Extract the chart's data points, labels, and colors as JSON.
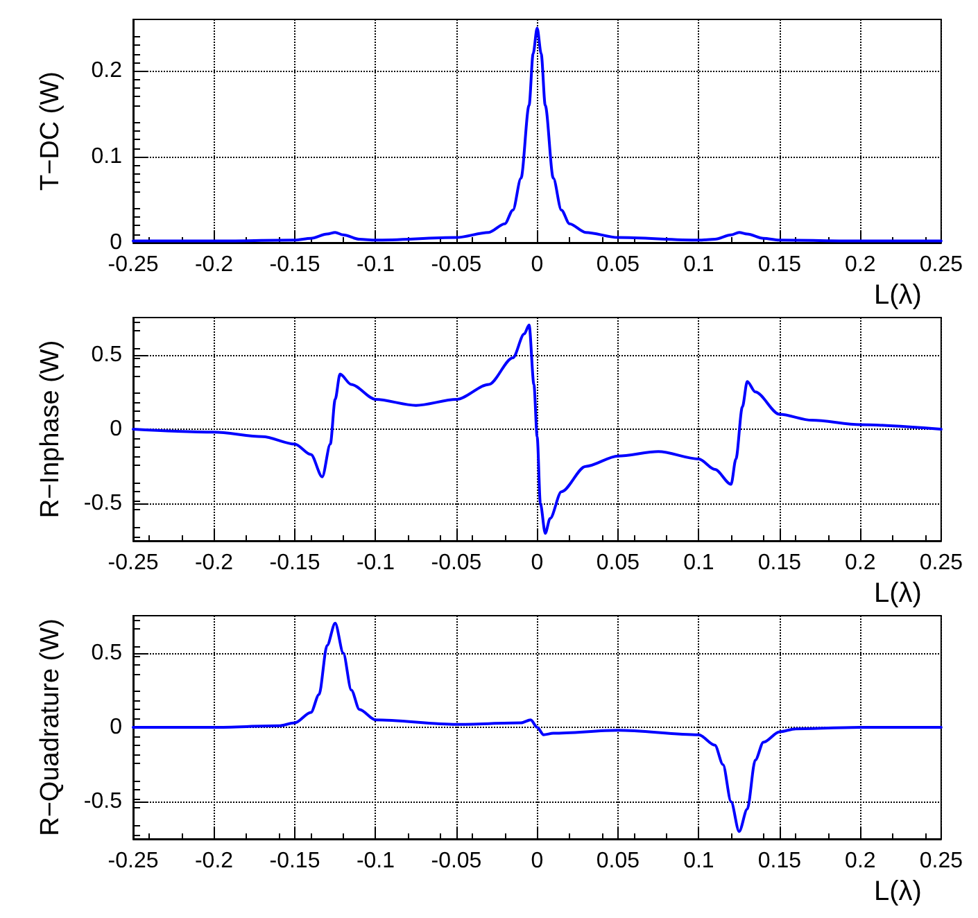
{
  "chart_data": [
    {
      "type": "line",
      "xlabel": "L(λ)",
      "ylabel": "T−DC (W)",
      "xlim": [
        -0.25,
        0.25
      ],
      "xticks": [
        -0.25,
        -0.2,
        -0.15,
        -0.1,
        -0.05,
        0,
        0.05,
        0.1,
        0.15,
        0.2,
        0.25
      ],
      "ylim": [
        0,
        0.26
      ],
      "yticks": [
        0,
        0.1,
        0.2
      ],
      "grid": true,
      "marker": "none",
      "line_style": "solid",
      "series": [
        {
          "color": "#0000ff",
          "x": [
            -0.25,
            -0.2,
            -0.15,
            -0.14,
            -0.13,
            -0.125,
            -0.12,
            -0.11,
            -0.1,
            -0.05,
            -0.03,
            -0.02,
            -0.015,
            -0.01,
            -0.005,
            -0.0025,
            0,
            0.0025,
            0.005,
            0.01,
            0.015,
            0.02,
            0.03,
            0.05,
            0.1,
            0.11,
            0.12,
            0.125,
            0.13,
            0.14,
            0.15,
            0.2,
            0.25
          ],
          "values": [
            0.002,
            0.002,
            0.003,
            0.005,
            0.01,
            0.012,
            0.009,
            0.004,
            0.003,
            0.006,
            0.012,
            0.022,
            0.038,
            0.075,
            0.16,
            0.22,
            0.25,
            0.22,
            0.16,
            0.075,
            0.038,
            0.022,
            0.012,
            0.006,
            0.003,
            0.004,
            0.009,
            0.012,
            0.01,
            0.005,
            0.003,
            0.002,
            0.002
          ]
        }
      ]
    },
    {
      "type": "line",
      "xlabel": "L(λ)",
      "ylabel": "R−Inphase (W)",
      "xlim": [
        -0.25,
        0.25
      ],
      "xticks": [
        -0.25,
        -0.2,
        -0.15,
        -0.1,
        -0.05,
        0,
        0.05,
        0.1,
        0.15,
        0.2,
        0.25
      ],
      "ylim": [
        -0.75,
        0.75
      ],
      "yticks": [
        -0.5,
        0,
        0.5
      ],
      "grid": true,
      "marker": "none",
      "line_style": "solid",
      "series": [
        {
          "color": "#0000ff",
          "x": [
            -0.25,
            -0.2,
            -0.17,
            -0.15,
            -0.14,
            -0.133,
            -0.128,
            -0.125,
            -0.122,
            -0.115,
            -0.1,
            -0.075,
            -0.05,
            -0.03,
            -0.015,
            -0.008,
            -0.005,
            -0.002,
            0,
            0.002,
            0.005,
            0.008,
            0.015,
            0.03,
            0.05,
            0.075,
            0.1,
            0.11,
            0.12,
            0.123,
            0.127,
            0.13,
            0.135,
            0.15,
            0.17,
            0.2,
            0.25
          ],
          "values": [
            0,
            -0.02,
            -0.05,
            -0.1,
            -0.17,
            -0.32,
            -0.1,
            0.2,
            0.37,
            0.3,
            0.2,
            0.16,
            0.2,
            0.3,
            0.48,
            0.64,
            0.7,
            0.3,
            -0.05,
            -0.5,
            -0.7,
            -0.6,
            -0.42,
            -0.25,
            -0.18,
            -0.15,
            -0.2,
            -0.27,
            -0.37,
            -0.2,
            0.15,
            0.32,
            0.25,
            0.1,
            0.06,
            0.03,
            0
          ]
        }
      ]
    },
    {
      "type": "line",
      "xlabel": "L(λ)",
      "ylabel": "R−Quadrature (W)",
      "xlim": [
        -0.25,
        0.25
      ],
      "xticks": [
        -0.25,
        -0.2,
        -0.15,
        -0.1,
        -0.05,
        0,
        0.05,
        0.1,
        0.15,
        0.2,
        0.25
      ],
      "ylim": [
        -0.75,
        0.75
      ],
      "yticks": [
        -0.5,
        0,
        0.5
      ],
      "grid": true,
      "marker": "none",
      "line_style": "solid",
      "series": [
        {
          "color": "#0000ff",
          "x": [
            -0.25,
            -0.2,
            -0.16,
            -0.15,
            -0.14,
            -0.135,
            -0.13,
            -0.125,
            -0.12,
            -0.115,
            -0.11,
            -0.1,
            -0.05,
            -0.01,
            -0.004,
            0,
            0.004,
            0.01,
            0.05,
            0.1,
            0.11,
            0.115,
            0.12,
            0.125,
            0.13,
            0.135,
            0.14,
            0.15,
            0.16,
            0.2,
            0.25
          ],
          "values": [
            0,
            0,
            0.01,
            0.03,
            0.1,
            0.22,
            0.55,
            0.7,
            0.5,
            0.25,
            0.12,
            0.05,
            0.02,
            0.03,
            0.05,
            0,
            -0.05,
            -0.04,
            -0.02,
            -0.05,
            -0.12,
            -0.25,
            -0.5,
            -0.7,
            -0.55,
            -0.22,
            -0.1,
            -0.03,
            -0.01,
            0,
            0
          ]
        }
      ]
    }
  ]
}
